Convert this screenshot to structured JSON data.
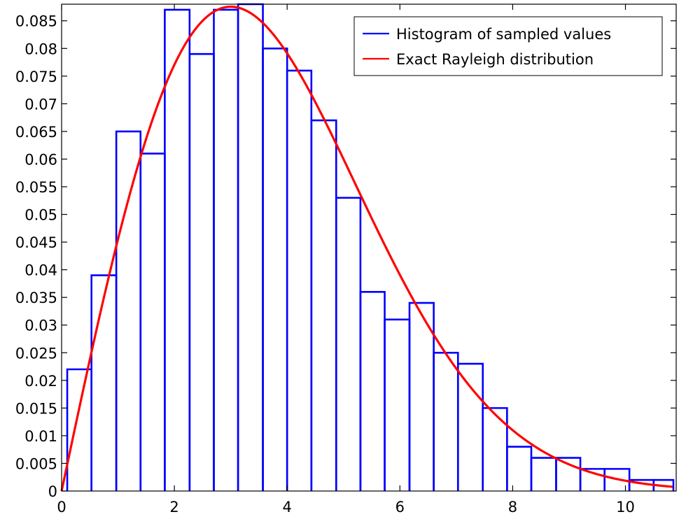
{
  "chart_data": {
    "type": "bar",
    "title": "",
    "xlabel": "",
    "ylabel": "",
    "xlim": [
      0,
      10.9
    ],
    "ylim": [
      0,
      0.088
    ],
    "x_ticks": [
      0,
      2,
      4,
      6,
      8,
      10
    ],
    "x_tick_labels": [
      "0",
      "2",
      "4",
      "6",
      "8",
      "10"
    ],
    "y_ticks": [
      0,
      0.005,
      0.01,
      0.015,
      0.02,
      0.025,
      0.03,
      0.035,
      0.04,
      0.045,
      0.05,
      0.055,
      0.06,
      0.065,
      0.07,
      0.075,
      0.08,
      0.085
    ],
    "y_tick_labels": [
      "0",
      "0.005",
      "0.01",
      "0.015",
      "0.02",
      "0.025",
      "0.03",
      "0.035",
      "0.04",
      "0.045",
      "0.05",
      "0.055",
      "0.06",
      "0.065",
      "0.07",
      "0.075",
      "0.08",
      "0.085"
    ],
    "grid": false,
    "legend_position": "top-right",
    "series": [
      {
        "name": "Histogram of sampled values",
        "type": "histogram-outline",
        "color": "#0000ff",
        "bin_edges": [
          0.1,
          0.53,
          0.97,
          1.4,
          1.83,
          2.27,
          2.7,
          3.13,
          3.57,
          4.0,
          4.43,
          4.87,
          5.3,
          5.73,
          6.17,
          6.6,
          7.03,
          7.47,
          7.9,
          8.33,
          8.77,
          9.2,
          9.63,
          10.07,
          10.5,
          10.85
        ],
        "values": [
          0.022,
          0.039,
          0.065,
          0.061,
          0.087,
          0.079,
          0.087,
          0.088,
          0.08,
          0.076,
          0.067,
          0.053,
          0.036,
          0.031,
          0.034,
          0.025,
          0.023,
          0.015,
          0.008,
          0.006,
          0.006,
          0.004,
          0.004,
          0.002,
          0.002
        ]
      },
      {
        "name": "Exact Rayleigh distribution",
        "type": "line",
        "color": "#ff0000",
        "function": "rayleigh-pdf-scaled",
        "sigma": 3,
        "scale": 0.433
      }
    ]
  }
}
